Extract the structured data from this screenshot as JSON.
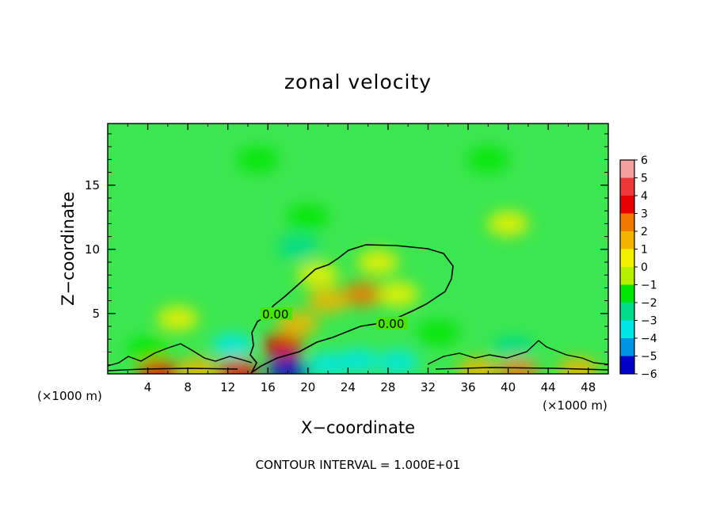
{
  "chart_data": {
    "type": "heatmap",
    "title": "zonal velocity",
    "xlabel": "X−coordinate",
    "ylabel": "Z−coordinate",
    "x_unit": "(×1000 m)",
    "x_unit_right": "(×1000 m)",
    "x_range": [
      0,
      50
    ],
    "y_range": [
      0.3,
      19.8
    ],
    "x_ticks": [
      "4",
      "8",
      "12",
      "16",
      "20",
      "24",
      "28",
      "32",
      "36",
      "40",
      "44",
      "48"
    ],
    "x_tick_values": [
      4,
      8,
      12,
      16,
      20,
      24,
      28,
      32,
      36,
      40,
      44,
      48
    ],
    "y_ticks": [
      "5",
      "10",
      "15"
    ],
    "y_tick_values": [
      5,
      10,
      15
    ],
    "colorbar": {
      "labels": [
        "6",
        "5",
        "4",
        "3",
        "2",
        "1",
        "0",
        "−1",
        "−2",
        "−3",
        "−4",
        "−5",
        "−6"
      ],
      "values": [
        6,
        5,
        4,
        3,
        2,
        1,
        0,
        -1,
        -2,
        -3,
        -4,
        -5,
        -6
      ],
      "colors": [
        "#f4a0a0",
        "#ee3838",
        "#e60000",
        "#f07800",
        "#f5b400",
        "#f0f000",
        "#b4f000",
        "#00e600",
        "#00dc8c",
        "#00e6e6",
        "#0096e6",
        "#0000c8",
        "#500096"
      ]
    },
    "contour_labels": [
      "0.00",
      "0.00"
    ],
    "contour_level": 0.0,
    "background_value": -0.2,
    "features": [
      {
        "x": 17.5,
        "z": 2.5,
        "value": 4.3
      },
      {
        "x": 25.5,
        "z": 6.5,
        "value": 2.6
      },
      {
        "x": 22.0,
        "z": 6.0,
        "value": 1.6
      },
      {
        "x": 29.0,
        "z": 6.5,
        "value": 1.4
      },
      {
        "x": 19.0,
        "z": 4.2,
        "value": 1.6
      },
      {
        "x": 21.0,
        "z": 8.0,
        "value": 0.8
      },
      {
        "x": 27.0,
        "z": 9.0,
        "value": 0.7
      },
      {
        "x": 12.5,
        "z": 2.5,
        "value": -3.0
      },
      {
        "x": 18.0,
        "z": 0.6,
        "value": -5.2
      },
      {
        "x": 25.0,
        "z": 1.3,
        "value": -3.3
      },
      {
        "x": 22.0,
        "z": 1.0,
        "value": -3.0
      },
      {
        "x": 29.0,
        "z": 1.2,
        "value": -2.6
      },
      {
        "x": 19.0,
        "z": 10.2,
        "value": -2.2
      },
      {
        "x": 20.0,
        "z": 12.5,
        "value": -1.3
      },
      {
        "x": 33.0,
        "z": 3.5,
        "value": -1.4
      },
      {
        "x": 40.5,
        "z": 2.3,
        "value": -2.0
      },
      {
        "x": 4.0,
        "z": 2.2,
        "value": -1.5
      },
      {
        "x": 5.0,
        "z": 0.5,
        "value": 4.4
      },
      {
        "x": 13.0,
        "z": 0.5,
        "value": 3.5
      },
      {
        "x": 9.0,
        "z": 0.6,
        "value": 1.6
      },
      {
        "x": 41.0,
        "z": 0.5,
        "value": 3.0
      },
      {
        "x": 37.0,
        "z": 0.6,
        "value": 1.6
      },
      {
        "x": 47.0,
        "z": 0.6,
        "value": 2.2
      },
      {
        "x": 7.0,
        "z": 4.6,
        "value": 0.7
      },
      {
        "x": 40.0,
        "z": 12.0,
        "value": 0.6
      },
      {
        "x": 15.0,
        "z": 17.0,
        "value": -0.9
      },
      {
        "x": 38.0,
        "z": 17.0,
        "value": -0.8
      }
    ]
  },
  "footer": {
    "contour_interval": "CONTOUR INTERVAL = 1.000E+01"
  }
}
